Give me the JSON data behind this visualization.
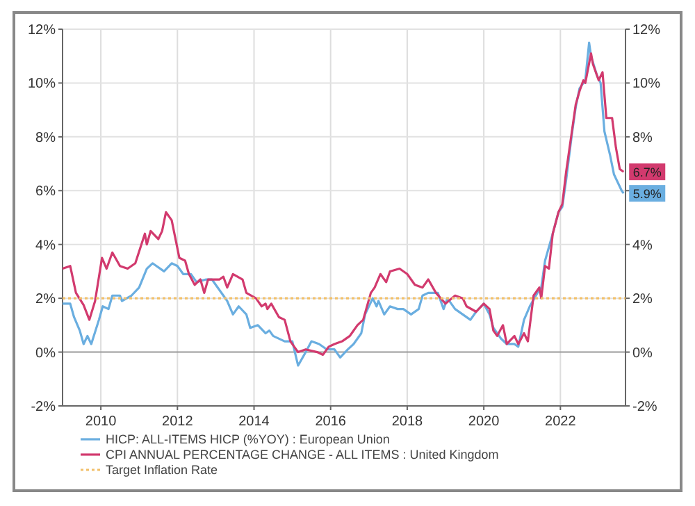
{
  "chart_data": {
    "type": "line",
    "xlim": [
      2009,
      2023.7
    ],
    "xticks": [
      2010,
      2012,
      2014,
      2016,
      2018,
      2020,
      2022
    ],
    "ylim": [
      -2,
      12
    ],
    "yticks": [
      {
        "value": -2,
        "label": "-2%"
      },
      {
        "value": 0,
        "label": "0%"
      },
      {
        "value": 2,
        "label": "2%"
      },
      {
        "value": 4,
        "label": "4%"
      },
      {
        "value": 6,
        "label": "6%"
      },
      {
        "value": 8,
        "label": "8%"
      },
      {
        "value": 10,
        "label": "10%"
      },
      {
        "value": 12,
        "label": "12%"
      }
    ],
    "y2lim": [
      -2,
      12
    ],
    "y2ticks": [
      {
        "value": -2,
        "label": "-2%"
      },
      {
        "value": 0,
        "label": "0%"
      },
      {
        "value": 2,
        "label": "2%"
      },
      {
        "value": 4,
        "label": "4%"
      },
      {
        "value": 6,
        "label": null
      },
      {
        "value": 8,
        "label": "8%"
      },
      {
        "value": 10,
        "label": "10%"
      },
      {
        "value": 12,
        "label": "12%"
      }
    ],
    "grid": true,
    "legend": "bottom",
    "line_style": "solid",
    "marker": "none",
    "series": [
      {
        "name": "HICP: ALL-ITEMS HICP (%YOY) : European Union",
        "color": "#6aaee0",
        "x": [
          2009,
          2009.2,
          2009.3,
          2009.45,
          2009.55,
          2009.65,
          2009.75,
          2009.95,
          2010.05,
          2010.2,
          2010.3,
          2010.5,
          2010.55,
          2010.8,
          2011,
          2011.2,
          2011.35,
          2011.65,
          2011.85,
          2012,
          2012.15,
          2012.35,
          2012.5,
          2012.75,
          2012.9,
          2013.1,
          2013.3,
          2013.45,
          2013.6,
          2013.8,
          2013.9,
          2014.1,
          2014.3,
          2014.4,
          2014.5,
          2014.8,
          2015,
          2015.15,
          2015.35,
          2015.5,
          2015.7,
          2015.9,
          2016.1,
          2016.25,
          2016.45,
          2016.6,
          2016.8,
          2016.9,
          2017.1,
          2017.2,
          2017.25,
          2017.4,
          2017.55,
          2017.75,
          2017.9,
          2018.1,
          2018.3,
          2018.4,
          2018.55,
          2018.8,
          2018.95,
          2019.05,
          2019.25,
          2019.45,
          2019.65,
          2019.8,
          2020,
          2020.15,
          2020.25,
          2020.45,
          2020.6,
          2020.8,
          2020.9,
          2021.05,
          2021.2,
          2021.4,
          2021.5,
          2021.6,
          2021.8,
          2021.95,
          2022.05,
          2022.15,
          2022.3,
          2022.4,
          2022.5,
          2022.65,
          2022.75,
          2022.8,
          2022.95,
          2023.05,
          2023.15,
          2023.3,
          2023.4,
          2023.6,
          2023.65
        ],
        "values": [
          1.8,
          1.8,
          1.3,
          0.8,
          0.3,
          0.6,
          0.3,
          1.2,
          1.7,
          1.6,
          2.1,
          2.1,
          1.9,
          2.1,
          2.4,
          3.1,
          3.3,
          3.0,
          3.3,
          3.2,
          2.9,
          2.9,
          2.6,
          2.7,
          2.7,
          2.3,
          1.9,
          1.4,
          1.7,
          1.4,
          0.9,
          1.0,
          0.7,
          0.8,
          0.6,
          0.4,
          0.4,
          -0.5,
          0.0,
          0.4,
          0.3,
          0.1,
          0.1,
          -0.2,
          0.1,
          0.3,
          0.7,
          1.4,
          2.0,
          1.7,
          1.9,
          1.4,
          1.7,
          1.6,
          1.6,
          1.4,
          1.6,
          2.1,
          2.2,
          2.2,
          1.6,
          2.0,
          1.6,
          1.4,
          1.2,
          1.5,
          1.8,
          1.4,
          0.9,
          0.5,
          0.3,
          0.3,
          0.2,
          1.2,
          1.7,
          2.2,
          2.4,
          3.4,
          4.4,
          5.2,
          5.4,
          6.4,
          8.1,
          9.1,
          9.8,
          10.1,
          11.5,
          11.0,
          10.3,
          10.0,
          8.2,
          7.3,
          6.6,
          6.0,
          5.9
        ]
      },
      {
        "name": "CPI ANNUAL PERCENTAGE CHANGE - ALL ITEMS : United Kingdom",
        "color": "#d23a6e",
        "x": [
          2009,
          2009.2,
          2009.35,
          2009.55,
          2009.7,
          2009.85,
          2010.03,
          2010.15,
          2010.3,
          2010.5,
          2010.7,
          2010.9,
          2011.15,
          2011.2,
          2011.3,
          2011.5,
          2011.6,
          2011.7,
          2011.85,
          2012.05,
          2012.2,
          2012.3,
          2012.45,
          2012.6,
          2012.7,
          2012.8,
          2013.1,
          2013.2,
          2013.3,
          2013.45,
          2013.7,
          2013.8,
          2014.05,
          2014.2,
          2014.3,
          2014.35,
          2014.45,
          2014.65,
          2014.8,
          2014.95,
          2015.15,
          2015.35,
          2015.65,
          2015.8,
          2015.95,
          2016.1,
          2016.3,
          2016.5,
          2016.7,
          2016.85,
          2017.05,
          2017.15,
          2017.3,
          2017.45,
          2017.55,
          2017.8,
          2018,
          2018.2,
          2018.4,
          2018.55,
          2018.75,
          2019,
          2019.25,
          2019.45,
          2019.55,
          2019.8,
          2020,
          2020.15,
          2020.25,
          2020.35,
          2020.5,
          2020.6,
          2020.8,
          2020.9,
          2021.05,
          2021.15,
          2021.3,
          2021.45,
          2021.5,
          2021.6,
          2021.7,
          2021.8,
          2021.95,
          2022.05,
          2022.15,
          2022.3,
          2022.4,
          2022.5,
          2022.6,
          2022.65,
          2022.8,
          2022.85,
          2023,
          2023.1,
          2023.2,
          2023.35,
          2023.45,
          2023.55,
          2023.65
        ],
        "values": [
          3.1,
          3.2,
          2.2,
          1.75,
          1.2,
          1.9,
          3.5,
          3.1,
          3.7,
          3.2,
          3.1,
          3.3,
          4.4,
          4.0,
          4.5,
          4.2,
          4.5,
          5.2,
          4.9,
          3.5,
          3.4,
          2.9,
          2.5,
          2.7,
          2.2,
          2.7,
          2.7,
          2.8,
          2.4,
          2.9,
          2.7,
          2.2,
          2.0,
          1.7,
          1.8,
          1.6,
          1.8,
          1.3,
          1.2,
          0.4,
          0.0,
          0.1,
          0.0,
          -0.1,
          0.2,
          0.3,
          0.4,
          0.6,
          1.0,
          1.2,
          2.2,
          2.4,
          2.9,
          2.6,
          3.0,
          3.1,
          2.9,
          2.5,
          2.4,
          2.7,
          2.2,
          1.8,
          2.1,
          2.0,
          1.7,
          1.5,
          1.8,
          1.6,
          0.8,
          0.6,
          1.0,
          0.3,
          0.6,
          0.3,
          0.7,
          0.4,
          2.1,
          2.4,
          2.0,
          3.2,
          3.1,
          4.4,
          5.2,
          5.5,
          6.7,
          8.2,
          9.2,
          9.7,
          10.1,
          10.0,
          11.1,
          10.7,
          10.1,
          10.4,
          8.7,
          8.7,
          7.6,
          6.8,
          6.7
        ]
      },
      {
        "name": "Target Inflation Rate",
        "color": "#f2c06a",
        "line_style": "dotted",
        "x": [
          2009,
          2023.7
        ],
        "values": [
          2,
          2
        ]
      }
    ],
    "annotations": [
      {
        "text": "6.7%",
        "x": 2023.65,
        "y": 6.7
      },
      {
        "text": "5.9%",
        "x": 2023.65,
        "y": 5.9
      }
    ]
  }
}
